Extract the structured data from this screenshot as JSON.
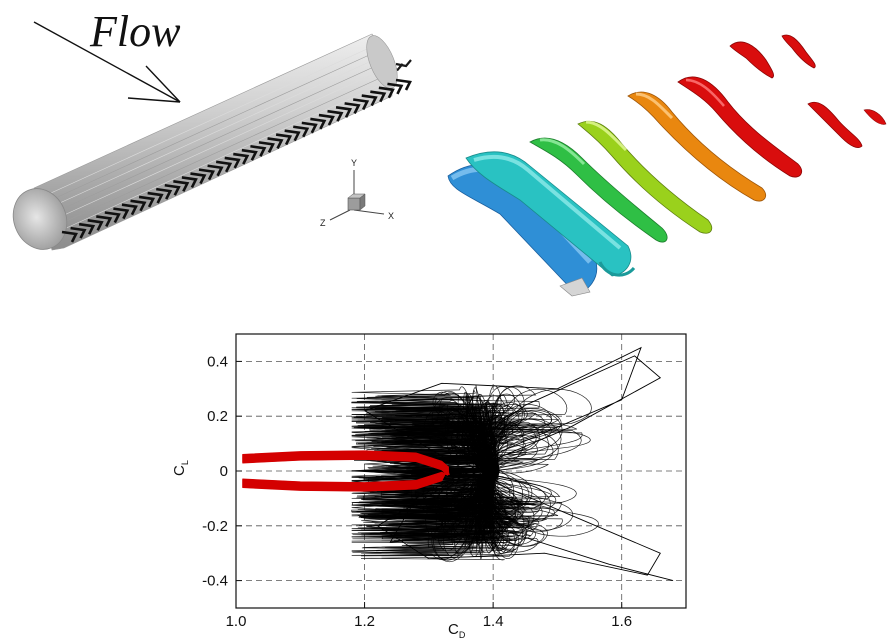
{
  "figure": {
    "top_left": {
      "flow_label": "Flow",
      "axes_triad": {
        "y": "Y",
        "z": "Z",
        "x": "X"
      }
    },
    "colors": {
      "limit_cycle": "#d40000",
      "trajectory": "#000000",
      "cylinder": "#b8b8b8",
      "vortex_sequence": [
        "#2f8fd6",
        "#29c2c2",
        "#2fbf45",
        "#9ad11c",
        "#e9870f",
        "#d90d0d",
        "#d90d0d",
        "#d90d0d",
        "#d90d0d"
      ]
    },
    "icons": {
      "flow_arrow": "arrow-icon",
      "axes": "axes-triad-icon"
    }
  },
  "chart_data": {
    "type": "line",
    "xlabel": "C",
    "xlabel_sub": "D",
    "ylabel": "C",
    "ylabel_sub": "L",
    "xlim": [
      1.0,
      1.7
    ],
    "ylim": [
      -0.5,
      0.5
    ],
    "xticks": [
      1.0,
      1.2,
      1.4,
      1.6
    ],
    "yticks": [
      -0.4,
      -0.2,
      0,
      0.2,
      0.4
    ],
    "xtick_labels": [
      "1.0",
      "1.2",
      "1.4",
      "1.6"
    ],
    "ytick_labels": [
      "-0.4",
      "-0.2",
      "0",
      "0.2",
      "0.4"
    ],
    "grid": true,
    "grid_style": "dashed",
    "series": [
      {
        "color": "#000000",
        "shape": "chaotic-butterfly",
        "center": [
          1.37,
          0.0
        ],
        "cd_range": [
          1.18,
          1.68
        ],
        "cl_range": [
          -0.42,
          0.47
        ],
        "points": [
          [
            1.32,
            0.02
          ],
          [
            1.45,
            0.24
          ],
          [
            1.62,
            0.42
          ],
          [
            1.66,
            0.34
          ],
          [
            1.52,
            0.16
          ],
          [
            1.38,
            0.02
          ],
          [
            1.22,
            -0.2
          ],
          [
            1.3,
            -0.32
          ],
          [
            1.48,
            -0.3
          ],
          [
            1.64,
            -0.38
          ],
          [
            1.66,
            -0.3
          ],
          [
            1.5,
            -0.14
          ],
          [
            1.36,
            0.0
          ],
          [
            1.2,
            0.22
          ],
          [
            1.32,
            0.32
          ],
          [
            1.5,
            0.3
          ],
          [
            1.63,
            0.45
          ],
          [
            1.6,
            0.26
          ],
          [
            1.42,
            0.08
          ],
          [
            1.28,
            -0.1
          ],
          [
            1.24,
            -0.26
          ],
          [
            1.42,
            -0.22
          ],
          [
            1.58,
            -0.34
          ],
          [
            1.68,
            -0.4
          ]
        ]
      },
      {
        "color": "#d40000",
        "shape": "closed-loop",
        "cd_range": [
          1.01,
          1.33
        ],
        "cl_range": [
          -0.06,
          0.06
        ],
        "points": [
          [
            1.01,
            0.045
          ],
          [
            1.1,
            0.055
          ],
          [
            1.2,
            0.058
          ],
          [
            1.28,
            0.05
          ],
          [
            1.32,
            0.02
          ],
          [
            1.33,
            0.0
          ],
          [
            1.32,
            -0.02
          ],
          [
            1.28,
            -0.05
          ],
          [
            1.2,
            -0.058
          ],
          [
            1.1,
            -0.055
          ],
          [
            1.01,
            -0.045
          ]
        ]
      }
    ]
  }
}
